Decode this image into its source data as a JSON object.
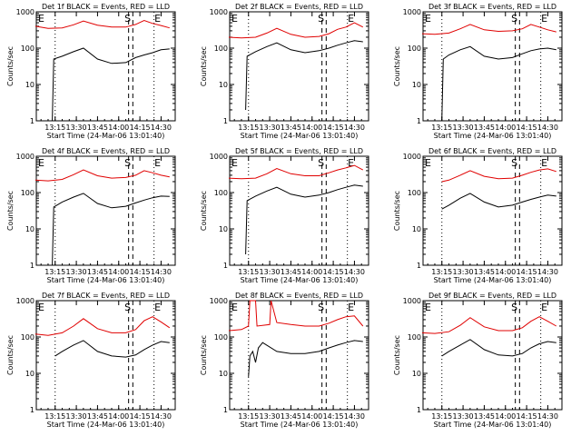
{
  "figure": {
    "y_label": "Counts/sec",
    "x_label": "Start Time (24-Mar-06 13:01:40)",
    "colors": {
      "events": "#000000",
      "lld": "#e00000"
    }
  },
  "chart_data": [
    {
      "type": "line",
      "title": "Det 1f BLACK = Events, RED = LLD",
      "xlabel": "Start Time (24-Mar-06 13:01:40)",
      "ylabel": "Counts/sec",
      "yscale": "log",
      "ylim": [
        1,
        1000
      ],
      "y_ticks": [
        "1",
        "10",
        "100",
        "1000"
      ],
      "x_ticks": [
        "13:15",
        "13:30",
        "13:45",
        "14:00",
        "14:15",
        "14:30"
      ],
      "markers": {
        "left": "E",
        "mid": "S",
        "right": "E"
      },
      "series": [
        {
          "color": "#e00000",
          "x": [
            "13:01",
            "13:10",
            "13:20",
            "13:28",
            "13:35",
            "13:45",
            "13:55",
            "14:05",
            "14:12",
            "14:18",
            "14:24",
            "14:30",
            "14:36"
          ],
          "values": [
            400,
            350,
            360,
            440,
            560,
            430,
            380,
            380,
            450,
            580,
            480,
            420,
            360
          ]
        },
        {
          "color": "#000000",
          "x": [
            "13:13",
            "13:14",
            "13:20",
            "13:28",
            "13:35",
            "13:45",
            "13:55",
            "14:05",
            "14:12",
            "14:18",
            "14:24",
            "14:30",
            "14:36"
          ],
          "values": [
            1,
            50,
            60,
            80,
            100,
            50,
            38,
            40,
            55,
            65,
            75,
            90,
            95
          ]
        }
      ]
    },
    {
      "type": "line",
      "title": "Det 2f BLACK = Events, RED = LLD",
      "xlabel": "Start Time (24-Mar-06 13:01:40)",
      "ylabel": "Counts/sec",
      "yscale": "log",
      "ylim": [
        1,
        1000
      ],
      "y_ticks": [
        "1",
        "10",
        "100",
        "1000"
      ],
      "x_ticks": [
        "13:15",
        "13:30",
        "13:45",
        "14:00",
        "14:15",
        "14:30"
      ],
      "markers": {
        "left": "E",
        "mid": "S",
        "right": "E"
      },
      "series": [
        {
          "color": "#e00000",
          "x": [
            "13:01",
            "13:10",
            "13:20",
            "13:28",
            "13:35",
            "13:45",
            "13:55",
            "14:05",
            "14:12",
            "14:18",
            "14:24",
            "14:30",
            "14:36"
          ],
          "values": [
            200,
            190,
            200,
            260,
            350,
            240,
            200,
            210,
            250,
            330,
            380,
            500,
            380
          ]
        },
        {
          "color": "#000000",
          "x": [
            "13:13",
            "13:14",
            "13:20",
            "13:28",
            "13:35",
            "13:45",
            "13:55",
            "14:05",
            "14:12",
            "14:18",
            "14:24",
            "14:30",
            "14:36"
          ],
          "values": [
            2,
            60,
            80,
            110,
            140,
            90,
            75,
            85,
            100,
            120,
            140,
            160,
            150
          ]
        }
      ]
    },
    {
      "type": "line",
      "title": "Det 3f BLACK = Events, RED = LLD",
      "xlabel": "Start Time (24-Mar-06 13:01:40)",
      "ylabel": "Counts/sec",
      "yscale": "log",
      "ylim": [
        1,
        1000
      ],
      "y_ticks": [
        "1",
        "10",
        "100",
        "1000"
      ],
      "x_ticks": [
        "13:15",
        "13:30",
        "13:45",
        "14:00",
        "14:15",
        "14:30"
      ],
      "markers": {
        "left": "E",
        "mid": "S",
        "right": "E"
      },
      "series": [
        {
          "color": "#e00000",
          "x": [
            "13:01",
            "13:10",
            "13:20",
            "13:28",
            "13:35",
            "13:45",
            "13:55",
            "14:05",
            "14:12",
            "14:18",
            "14:24",
            "14:30",
            "14:36"
          ],
          "values": [
            250,
            240,
            260,
            340,
            450,
            320,
            290,
            300,
            340,
            450,
            380,
            320,
            280
          ]
        },
        {
          "color": "#000000",
          "x": [
            "13:15",
            "13:16",
            "13:20",
            "13:28",
            "13:35",
            "13:45",
            "13:55",
            "14:05",
            "14:12",
            "14:18",
            "14:24",
            "14:30",
            "14:36"
          ],
          "values": [
            1,
            50,
            65,
            90,
            110,
            60,
            50,
            55,
            70,
            85,
            95,
            100,
            90
          ]
        }
      ]
    },
    {
      "type": "line",
      "title": "Det 4f BLACK = Events, RED = LLD",
      "xlabel": "Start Time (24-Mar-06 13:01:40)",
      "ylabel": "Counts/sec",
      "yscale": "log",
      "ylim": [
        1,
        1000
      ],
      "y_ticks": [
        "1",
        "10",
        "100",
        "1000"
      ],
      "x_ticks": [
        "13:15",
        "13:30",
        "13:45",
        "14:00",
        "14:15",
        "14:30"
      ],
      "markers": {
        "left": "E",
        "mid": "S",
        "right": "E"
      },
      "series": [
        {
          "color": "#e00000",
          "x": [
            "13:01",
            "13:10",
            "13:20",
            "13:28",
            "13:35",
            "13:45",
            "13:55",
            "14:05",
            "14:12",
            "14:18",
            "14:24",
            "14:30",
            "14:36"
          ],
          "values": [
            220,
            210,
            230,
            310,
            420,
            290,
            250,
            260,
            300,
            400,
            350,
            300,
            270
          ]
        },
        {
          "color": "#000000",
          "x": [
            "13:13",
            "13:14",
            "13:20",
            "13:28",
            "13:35",
            "13:45",
            "13:55",
            "14:05",
            "14:12",
            "14:18",
            "14:24",
            "14:30",
            "14:36"
          ],
          "values": [
            1,
            40,
            55,
            75,
            95,
            50,
            38,
            42,
            52,
            62,
            72,
            80,
            78
          ]
        }
      ]
    },
    {
      "type": "line",
      "title": "Det 5f BLACK = Events, RED = LLD",
      "xlabel": "Start Time (24-Mar-06 13:01:40)",
      "ylabel": "Counts/sec",
      "yscale": "log",
      "ylim": [
        1,
        1000
      ],
      "y_ticks": [
        "1",
        "10",
        "100",
        "1000"
      ],
      "x_ticks": [
        "13:15",
        "13:30",
        "13:45",
        "14:00",
        "14:15",
        "14:30"
      ],
      "markers": {
        "left": "E",
        "mid": "S",
        "right": "E"
      },
      "series": [
        {
          "color": "#e00000",
          "x": [
            "13:01",
            "13:10",
            "13:20",
            "13:28",
            "13:35",
            "13:45",
            "13:55",
            "14:05",
            "14:12",
            "14:18",
            "14:24",
            "14:30",
            "14:36"
          ],
          "values": [
            250,
            240,
            250,
            330,
            460,
            330,
            290,
            290,
            350,
            420,
            480,
            560,
            420
          ]
        },
        {
          "color": "#000000",
          "x": [
            "13:13",
            "13:14",
            "13:20",
            "13:28",
            "13:35",
            "13:45",
            "13:55",
            "14:05",
            "14:12",
            "14:18",
            "14:24",
            "14:30",
            "14:36"
          ],
          "values": [
            2,
            60,
            80,
            110,
            140,
            90,
            75,
            85,
            100,
            120,
            140,
            160,
            150
          ]
        }
      ]
    },
    {
      "type": "line",
      "title": "Det 6f BLACK = Events, RED = LLD",
      "xlabel": "Start Time (24-Mar-06 13:01:40)",
      "ylabel": "Counts/sec",
      "yscale": "log",
      "ylim": [
        1,
        1000
      ],
      "y_ticks": [
        "1",
        "10",
        "100",
        "1000"
      ],
      "x_ticks": [
        "13:15",
        "13:30",
        "13:45",
        "14:00",
        "14:15",
        "14:30"
      ],
      "markers": {
        "left": "E",
        "mid": "S",
        "right": "E"
      },
      "series": [
        {
          "color": "#e00000",
          "x": [
            "13:15",
            "13:20",
            "13:28",
            "13:35",
            "13:45",
            "13:55",
            "14:05",
            "14:12",
            "14:18",
            "14:24",
            "14:30",
            "14:36"
          ],
          "values": [
            200,
            220,
            300,
            400,
            280,
            240,
            250,
            300,
            360,
            420,
            450,
            380
          ]
        },
        {
          "color": "#000000",
          "x": [
            "13:15",
            "13:20",
            "13:28",
            "13:35",
            "13:45",
            "13:55",
            "14:05",
            "14:12",
            "14:18",
            "14:24",
            "14:30",
            "14:36"
          ],
          "values": [
            35,
            45,
            70,
            95,
            55,
            40,
            45,
            55,
            65,
            75,
            85,
            80
          ]
        }
      ]
    },
    {
      "type": "line",
      "title": "Det 7f BLACK = Events, RED = LLD",
      "xlabel": "Start Time (24-Mar-06 13:01:40)",
      "ylabel": "Counts/sec",
      "yscale": "log",
      "ylim": [
        1,
        1000
      ],
      "y_ticks": [
        "1",
        "10",
        "100",
        "1000"
      ],
      "x_ticks": [
        "13:15",
        "13:30",
        "13:45",
        "14:00",
        "14:15",
        "14:30"
      ],
      "markers": {
        "left": "E",
        "mid": "S",
        "right": "E"
      },
      "series": [
        {
          "color": "#e00000",
          "x": [
            "13:01",
            "13:10",
            "13:20",
            "13:28",
            "13:35",
            "13:45",
            "13:55",
            "14:05",
            "14:12",
            "14:18",
            "14:24",
            "14:30",
            "14:36"
          ],
          "values": [
            120,
            110,
            130,
            200,
            320,
            170,
            130,
            130,
            160,
            280,
            360,
            260,
            180
          ]
        },
        {
          "color": "#000000",
          "x": [
            "13:15",
            "13:20",
            "13:28",
            "13:35",
            "13:45",
            "13:55",
            "14:05",
            "14:12",
            "14:18",
            "14:24",
            "14:30",
            "14:36"
          ],
          "values": [
            30,
            40,
            60,
            80,
            40,
            30,
            28,
            32,
            45,
            60,
            75,
            70
          ]
        }
      ]
    },
    {
      "type": "line",
      "title": "Det 8f BLACK = Events, RED = LLD",
      "xlabel": "Start Time (24-Mar-06 13:01:40)",
      "ylabel": "Counts/sec",
      "yscale": "log",
      "ylim": [
        1,
        1000
      ],
      "y_ticks": [
        "1",
        "10",
        "100",
        "1000"
      ],
      "x_ticks": [
        "13:15",
        "13:30",
        "13:45",
        "14:00",
        "14:15",
        "14:30"
      ],
      "markers": {
        "left": "E",
        "mid": "S",
        "right": "E"
      },
      "series": [
        {
          "color": "#e00000",
          "x": [
            "13:01",
            "13:10",
            "13:15",
            "13:16",
            "13:20",
            "13:21",
            "13:30",
            "13:31",
            "13:35",
            "13:45",
            "13:55",
            "14:05",
            "14:12",
            "14:18",
            "14:24",
            "14:30",
            "14:36"
          ],
          "values": [
            150,
            160,
            200,
            1000,
            1000,
            200,
            220,
            1000,
            250,
            220,
            200,
            200,
            240,
            300,
            360,
            380,
            200
          ]
        },
        {
          "color": "#000000",
          "x": [
            "13:15",
            "13:16",
            "13:18",
            "13:20",
            "13:22",
            "13:25",
            "13:35",
            "13:45",
            "13:55",
            "14:05",
            "14:12",
            "14:18",
            "14:24",
            "14:30",
            "14:36"
          ],
          "values": [
            8,
            30,
            40,
            20,
            50,
            70,
            40,
            35,
            35,
            40,
            50,
            60,
            70,
            80,
            75
          ]
        }
      ]
    },
    {
      "type": "line",
      "title": "Det 9f BLACK = Events, RED = LLD",
      "xlabel": "Start Time (24-Mar-06 13:01:40)",
      "ylabel": "Counts/sec",
      "yscale": "log",
      "ylim": [
        1,
        1000
      ],
      "y_ticks": [
        "1",
        "10",
        "100",
        "1000"
      ],
      "x_ticks": [
        "13:15",
        "13:30",
        "13:45",
        "14:00",
        "14:15",
        "14:30"
      ],
      "markers": {
        "left": "E",
        "mid": "S",
        "right": "E"
      },
      "series": [
        {
          "color": "#e00000",
          "x": [
            "13:01",
            "13:10",
            "13:20",
            "13:28",
            "13:35",
            "13:45",
            "13:55",
            "14:05",
            "14:12",
            "14:18",
            "14:24",
            "14:30",
            "14:36"
          ],
          "values": [
            130,
            125,
            140,
            210,
            340,
            190,
            150,
            150,
            180,
            270,
            360,
            270,
            200
          ]
        },
        {
          "color": "#000000",
          "x": [
            "13:15",
            "13:20",
            "13:28",
            "13:35",
            "13:45",
            "13:55",
            "14:05",
            "14:12",
            "14:18",
            "14:24",
            "14:30",
            "14:36"
          ],
          "values": [
            30,
            40,
            60,
            85,
            45,
            32,
            30,
            35,
            50,
            65,
            75,
            70
          ]
        }
      ]
    }
  ]
}
